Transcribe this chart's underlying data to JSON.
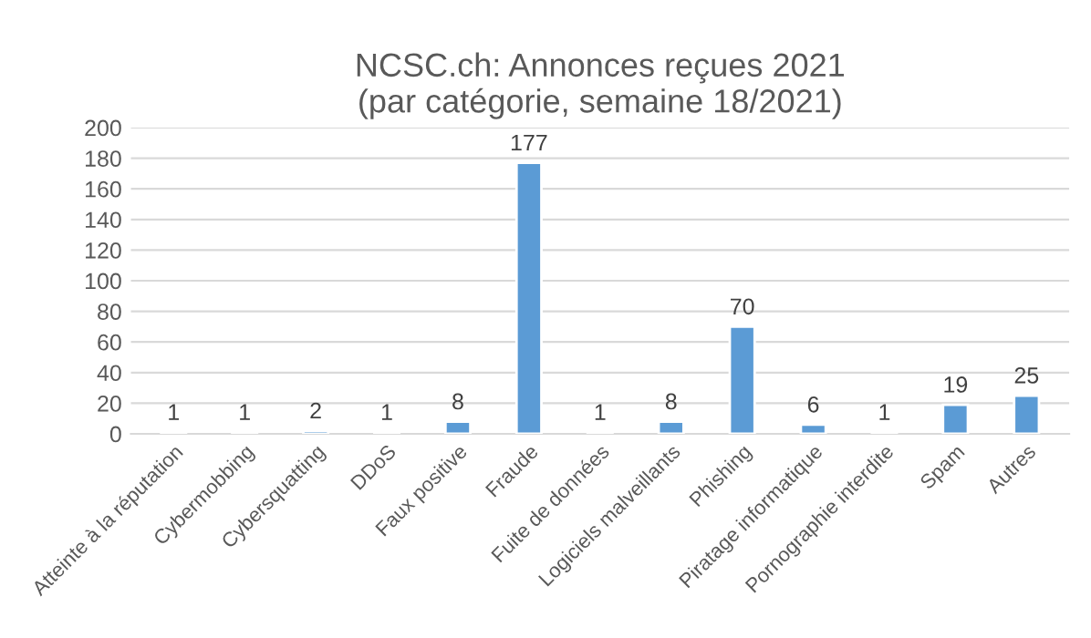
{
  "chart_data": {
    "type": "bar",
    "title": "NCSC.ch: Annonces reçues 2021\n(par catégorie, semaine 18/2021)",
    "categories": [
      "Atteinte à la réputation",
      "Cybermobbing",
      "Cybersquatting",
      "DDoS",
      "Faux positive",
      "Fraude",
      "Fuite de données",
      "Logiciels malveillants",
      "Phishing",
      "Piratage informatique",
      "Pornographie interdite",
      "Spam",
      "Autres"
    ],
    "values": [
      1,
      1,
      2,
      1,
      8,
      177,
      1,
      8,
      70,
      6,
      1,
      19,
      25
    ],
    "color": "#5b9bd5",
    "ylim": [
      0,
      200
    ],
    "yticks": [
      0,
      20,
      40,
      60,
      80,
      100,
      120,
      140,
      160,
      180,
      200
    ],
    "grid": "y",
    "data_labels": true
  }
}
